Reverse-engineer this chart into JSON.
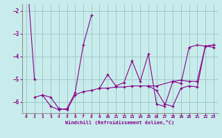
{
  "xlabel": "Windchill (Refroidissement éolien,°C)",
  "bg_color": "#c8ecec",
  "grid_color": "#a0c8c8",
  "line_color": "#880088",
  "xlim": [
    -0.5,
    23.5
  ],
  "ylim": [
    -6.5,
    -1.7
  ],
  "yticks": [
    -6,
    -5,
    -4,
    -3,
    -2
  ],
  "xticks": [
    0,
    1,
    2,
    3,
    4,
    5,
    6,
    7,
    8,
    9,
    10,
    11,
    12,
    13,
    14,
    15,
    16,
    17,
    18,
    19,
    20,
    21,
    22,
    23
  ],
  "series": [
    [
      0,
      -5.0,
      null,
      null,
      null,
      null,
      null,
      null,
      null,
      null,
      null,
      null,
      null,
      null,
      null,
      null,
      null,
      null,
      null,
      null,
      null,
      null,
      null,
      null
    ],
    [
      null,
      -5.8,
      -5.7,
      -6.2,
      -6.35,
      -6.3,
      -5.6,
      -3.5,
      -2.2,
      null,
      null,
      null,
      null,
      null,
      null,
      null,
      null,
      null,
      null,
      null,
      null,
      null,
      null,
      null
    ],
    [
      null,
      null,
      -5.7,
      -5.8,
      -6.3,
      -6.35,
      -5.7,
      -5.55,
      -5.5,
      -5.4,
      -5.4,
      -5.35,
      -5.35,
      -5.3,
      -5.3,
      -5.3,
      -5.5,
      -6.1,
      -6.2,
      -5.4,
      -5.3,
      -5.35,
      -3.55,
      -3.5
    ],
    [
      null,
      null,
      null,
      null,
      null,
      null,
      null,
      null,
      null,
      -5.4,
      -4.8,
      -5.3,
      -5.15,
      -4.2,
      -5.1,
      -3.9,
      -6.1,
      -6.2,
      -5.1,
      -5.05,
      -5.1,
      -5.1,
      -3.55,
      -3.5
    ],
    [
      null,
      null,
      null,
      null,
      null,
      null,
      null,
      null,
      null,
      null,
      null,
      null,
      null,
      null,
      null,
      -5.3,
      -5.3,
      null,
      -5.1,
      -5.2,
      -3.6,
      -3.5,
      -3.55,
      -3.6
    ]
  ]
}
